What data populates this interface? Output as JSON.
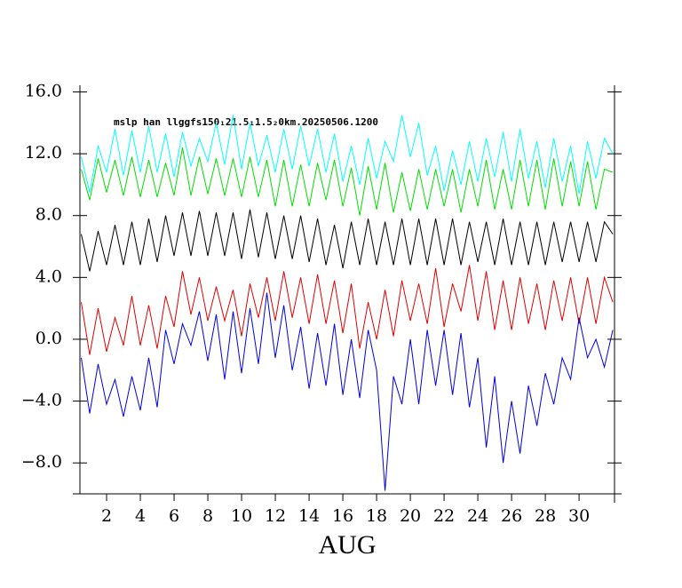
{
  "chart_data": {
    "type": "line",
    "title": "mslp han llggfs150₁21.5₁1.5₂0km.20250506.1200",
    "x_label": "AUG",
    "xlim": [
      0.42,
      32.1
    ],
    "ylim": [
      -10.0,
      16.2
    ],
    "xticks": [
      2,
      4,
      6,
      8,
      10,
      12,
      14,
      16,
      18,
      20,
      22,
      24,
      26,
      28,
      30
    ],
    "yticks": [
      {
        "value": -8,
        "label": "−8.0"
      },
      {
        "value": -4,
        "label": "−4.0"
      },
      {
        "value": 0,
        "label": "0.0"
      },
      {
        "value": 4,
        "label": "4.0"
      },
      {
        "value": 8,
        "label": "8.0"
      },
      {
        "value": 12,
        "label": "12.0"
      },
      {
        "value": 16,
        "label": "16.0"
      }
    ],
    "x": [
      0.5,
      1,
      1.5,
      2,
      2.5,
      3,
      3.5,
      4,
      4.5,
      5,
      5.5,
      6,
      6.5,
      7,
      7.5,
      8,
      8.5,
      9,
      9.5,
      10,
      10.5,
      11,
      11.5,
      12,
      12.5,
      13,
      13.5,
      14,
      14.5,
      15,
      15.5,
      16,
      16.5,
      17,
      17.5,
      18,
      18.5,
      19,
      19.5,
      20,
      20.5,
      21,
      21.5,
      22,
      22.5,
      23,
      23.5,
      24,
      24.5,
      25,
      25.5,
      26,
      26.5,
      27,
      27.5,
      28,
      28.5,
      29,
      29.5,
      30,
      30.5,
      31,
      31.5,
      32
    ],
    "series": [
      {
        "color": "#00ffff",
        "values": [
          11.8,
          9.5,
          12.5,
          10.8,
          13.6,
          10.6,
          13.5,
          10.8,
          13.8,
          10.8,
          13.3,
          10.5,
          13.4,
          11.2,
          13.0,
          11.5,
          14.0,
          11.3,
          14.5,
          11.0,
          14.0,
          11.2,
          13.2,
          10.8,
          13.6,
          11.0,
          13.8,
          11.2,
          13.6,
          10.8,
          13.3,
          10.2,
          12.5,
          10.0,
          13.0,
          10.4,
          12.8,
          11.5,
          14.5,
          11.8,
          14.0,
          10.6,
          12.5,
          9.6,
          12.2,
          10.0,
          12.8,
          10.2,
          13.0,
          10.5,
          13.4,
          10.2,
          13.6,
          10.4,
          12.8,
          9.8,
          13.0,
          10.2,
          12.5,
          9.4,
          12.8,
          10.4,
          13.0,
          12.0
        ]
      },
      {
        "color": "#00dd00",
        "values": [
          11.0,
          9.0,
          11.7,
          9.5,
          11.6,
          9.3,
          11.8,
          9.2,
          11.6,
          9.2,
          11.4,
          9.3,
          12.4,
          9.3,
          11.8,
          9.4,
          11.7,
          9.3,
          11.7,
          9.2,
          11.8,
          9.2,
          11.6,
          8.6,
          11.6,
          8.6,
          11.3,
          8.6,
          11.4,
          9.0,
          11.6,
          8.6,
          11.1,
          8.0,
          11.2,
          8.4,
          11.4,
          8.2,
          10.8,
          8.3,
          11.0,
          8.4,
          11.0,
          8.6,
          11.0,
          8.2,
          11.0,
          8.6,
          11.6,
          8.4,
          11.0,
          8.4,
          11.6,
          8.6,
          11.6,
          8.4,
          11.7,
          8.6,
          11.5,
          8.6,
          11.5,
          8.4,
          11.0,
          10.8
        ]
      },
      {
        "color": "#000000",
        "values": [
          6.8,
          4.4,
          7.0,
          4.8,
          7.4,
          4.8,
          7.6,
          4.8,
          7.8,
          5.0,
          8.0,
          5.4,
          8.2,
          5.4,
          8.3,
          5.4,
          8.2,
          5.4,
          8.2,
          5.2,
          8.4,
          5.3,
          8.2,
          5.2,
          8.0,
          5.2,
          8.0,
          5.0,
          7.8,
          4.8,
          7.4,
          4.6,
          7.6,
          4.8,
          7.8,
          4.8,
          7.6,
          4.8,
          7.8,
          4.8,
          7.8,
          4.8,
          7.8,
          4.8,
          7.8,
          4.8,
          7.6,
          5.0,
          7.6,
          4.8,
          7.8,
          4.8,
          7.6,
          4.8,
          7.6,
          4.8,
          7.6,
          5.0,
          7.6,
          5.0,
          7.6,
          5.0,
          7.6,
          6.8
        ]
      },
      {
        "color": "#dd0000",
        "values": [
          2.4,
          -1.0,
          2.0,
          -0.8,
          1.4,
          -0.4,
          2.8,
          -0.4,
          2.2,
          -0.6,
          2.8,
          0.8,
          4.4,
          1.6,
          4.0,
          1.2,
          3.4,
          1.2,
          3.2,
          0.2,
          3.6,
          1.4,
          4.0,
          1.2,
          4.4,
          1.4,
          4.0,
          1.0,
          4.2,
          1.0,
          3.8,
          0.4,
          3.6,
          -0.6,
          2.4,
          0.0,
          3.2,
          0.2,
          3.8,
          1.2,
          3.6,
          1.0,
          4.6,
          0.8,
          3.6,
          1.8,
          4.8,
          1.2,
          4.4,
          0.6,
          3.8,
          0.6,
          4.0,
          1.0,
          3.6,
          0.6,
          3.8,
          1.2,
          4.0,
          1.0,
          4.0,
          1.0,
          4.0,
          2.4
        ]
      },
      {
        "color": "#0000dd",
        "values": [
          -1.2,
          -4.8,
          -1.6,
          -4.2,
          -2.6,
          -5.0,
          -2.4,
          -4.6,
          -1.2,
          -4.4,
          0.6,
          -1.6,
          1.0,
          -0.4,
          1.8,
          -1.4,
          1.6,
          -2.6,
          1.8,
          -2.2,
          2.0,
          -1.6,
          3.0,
          -1.2,
          2.2,
          -2.0,
          0.8,
          -3.2,
          0.4,
          -3.0,
          1.0,
          -3.6,
          0.0,
          -3.8,
          0.6,
          -2.0,
          -9.8,
          -2.4,
          -4.2,
          0.0,
          -4.2,
          0.6,
          -3.0,
          0.6,
          -3.6,
          0.4,
          -4.4,
          -1.2,
          -7.0,
          -2.4,
          -8.0,
          -4.0,
          -7.4,
          -3.0,
          -5.6,
          -2.2,
          -4.2,
          -1.2,
          -2.6,
          1.4,
          -1.2,
          0.0,
          -1.8,
          0.6
        ]
      }
    ]
  }
}
